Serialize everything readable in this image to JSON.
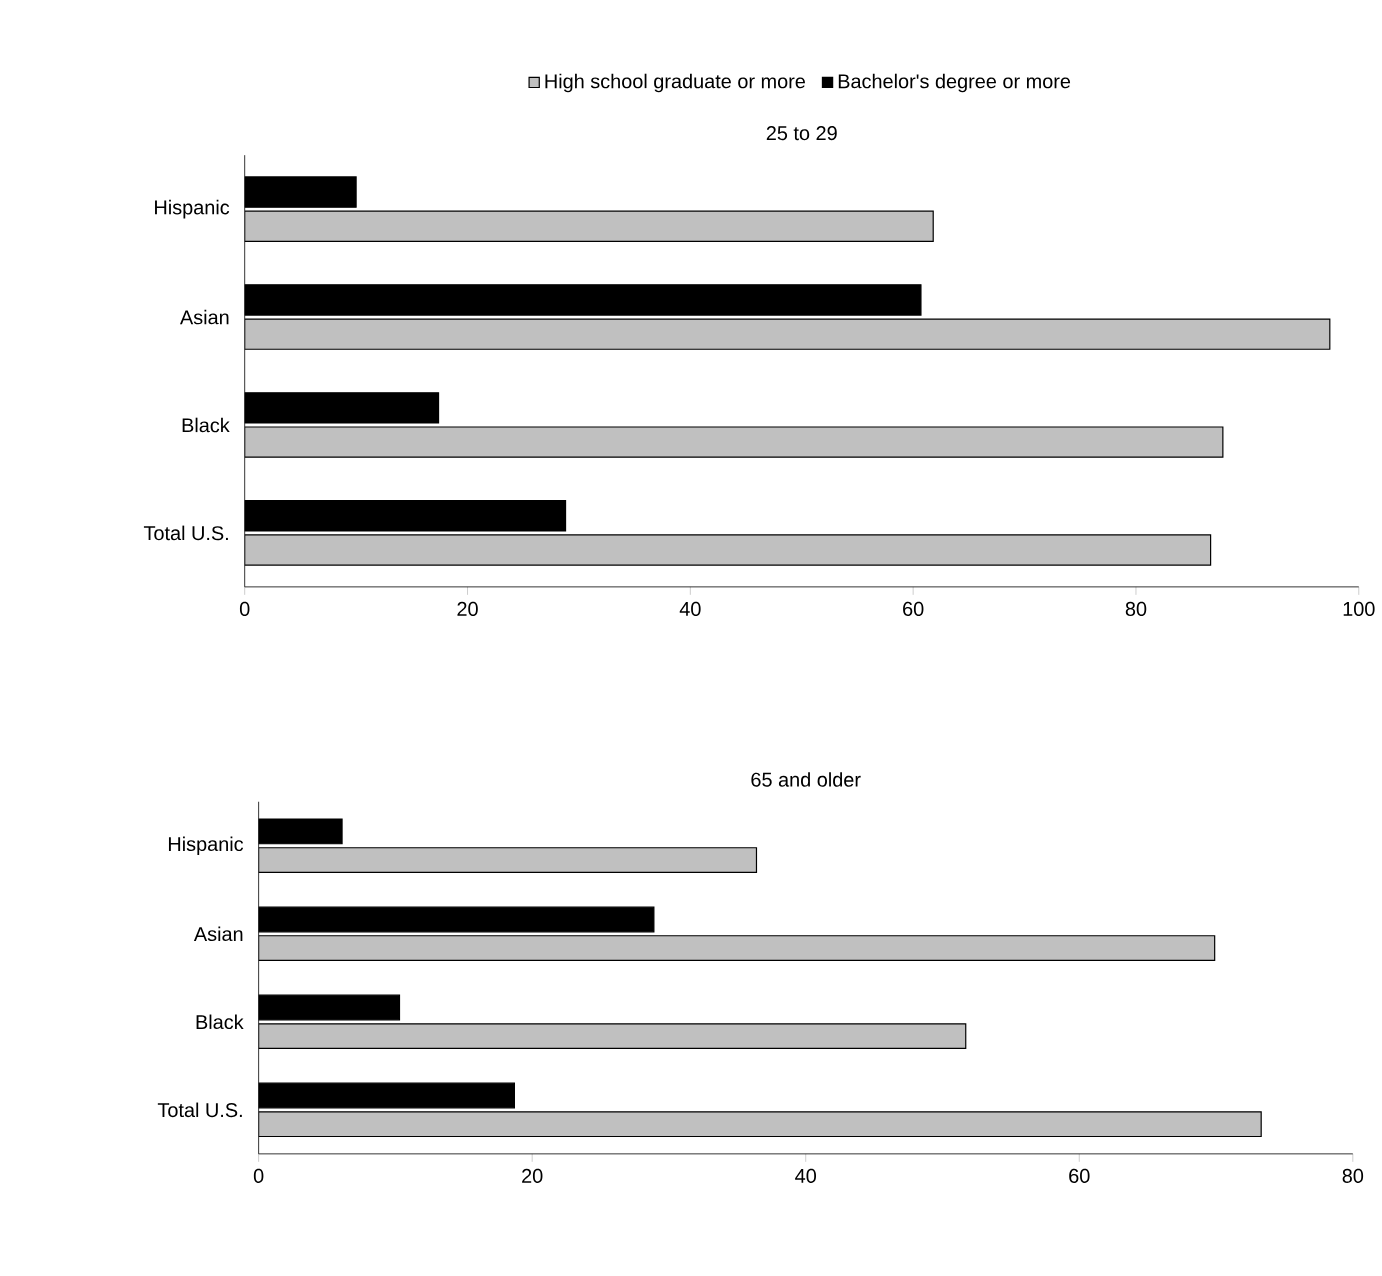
{
  "chart_data": [
    {
      "type": "bar",
      "orientation": "horizontal",
      "title": "25 to 29",
      "categories": [
        "Hispanic",
        "Asian",
        "Black",
        "Total U.S."
      ],
      "legend": "top",
      "series": [
        {
          "name": "High school graduate or more",
          "color": "#c0c0c0",
          "values": [
            61.8,
            97.4,
            87.8,
            86.7
          ]
        },
        {
          "name": "Bachelor's degree or more",
          "color": "#000000",
          "values": [
            10.0,
            60.7,
            17.4,
            28.8
          ]
        }
      ],
      "xlim": [
        0,
        100
      ],
      "xticks": [
        0,
        20,
        40,
        60,
        80,
        100
      ]
    },
    {
      "type": "bar",
      "orientation": "horizontal",
      "title": "65 and older",
      "categories": [
        "Hispanic",
        "Asian",
        "Black",
        "Total U.S."
      ],
      "series": [
        {
          "color": "#c0c0c0",
          "values": [
            36.4,
            69.9,
            51.7,
            73.3
          ]
        },
        {
          "color": "#000000",
          "values": [
            6.1,
            28.9,
            10.3,
            18.7
          ]
        }
      ],
      "xlim": [
        0,
        80
      ],
      "xticks": [
        0,
        20,
        40,
        60,
        80
      ]
    }
  ]
}
